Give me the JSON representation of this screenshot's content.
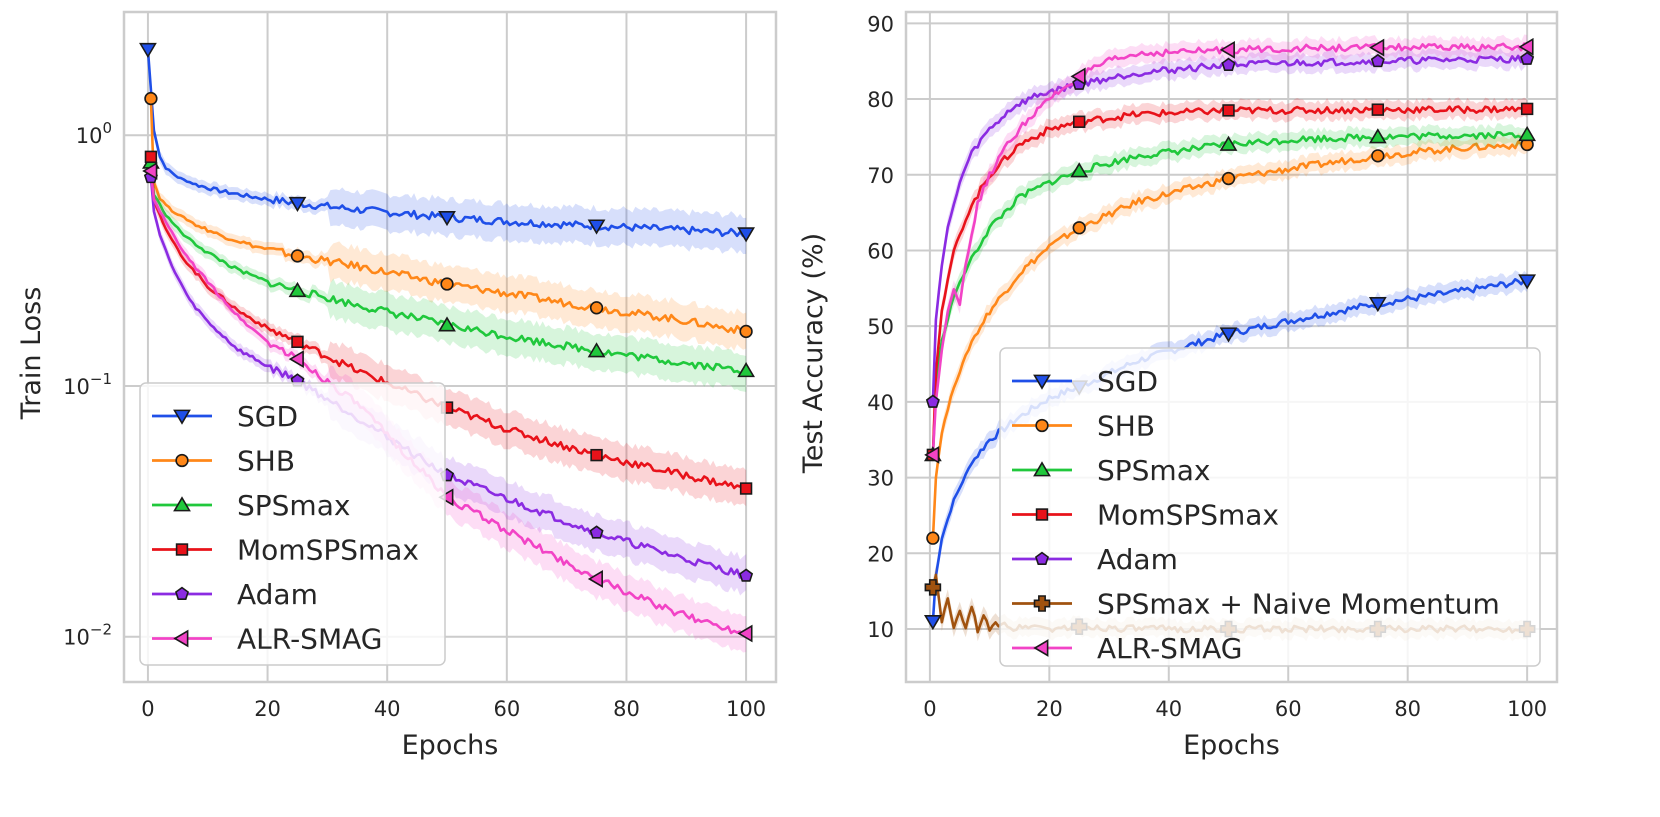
{
  "colors": {
    "SGD": "#1f4fe8",
    "SHB": "#ff8718",
    "SPSmax": "#20c83c",
    "MomSPSmax": "#e8121a",
    "Adam": "#8b2be2",
    "SPSmax + Naive Momentum": "#a0520f",
    "ALR-SMAG": "#f243c6"
  },
  "markers": {
    "SGD": "triangle-down",
    "SHB": "circle",
    "SPSmax": "triangle-up",
    "MomSPSmax": "square",
    "Adam": "pentagon",
    "SPSmax + Naive Momentum": "plus",
    "ALR-SMAG": "triangle-left"
  },
  "chart_data": [
    {
      "type": "line",
      "id": "left",
      "xlabel": "Epochs",
      "ylabel": "Train Loss",
      "yscale": "log",
      "xlim": [
        -4,
        105
      ],
      "ylim": [
        0.0066,
        3.1
      ],
      "xticks": [
        0,
        20,
        40,
        60,
        80,
        100
      ],
      "yticks": [
        {
          "value": 1,
          "base": "10",
          "exp": "0"
        },
        {
          "value": 0.1,
          "base": "10",
          "exp": "−1"
        },
        {
          "value": 0.01,
          "base": "10",
          "exp": "−2"
        }
      ],
      "grid": true,
      "legend": {
        "placement": "bottom-left",
        "entries": [
          "SGD",
          "SHB",
          "SPSmax",
          "MomSPSmax",
          "Adam",
          "ALR-SMAG"
        ]
      },
      "series": [
        {
          "name": "SGD",
          "x": [
            0,
            1,
            2,
            3,
            5,
            8,
            12,
            17,
            25,
            35,
            50,
            62,
            75,
            88,
            100
          ],
          "values": [
            2.2,
            1.05,
            0.82,
            0.74,
            0.68,
            0.635,
            0.6,
            0.57,
            0.535,
            0.505,
            0.47,
            0.45,
            0.435,
            0.42,
            0.405
          ],
          "markers_at": [
            0,
            25,
            50,
            75,
            100
          ]
        },
        {
          "name": "SHB",
          "x": [
            0.5,
            1,
            2,
            4,
            8,
            12,
            18,
            25,
            35,
            50,
            62,
            75,
            88,
            100
          ],
          "values": [
            1.4,
            0.65,
            0.56,
            0.5,
            0.44,
            0.4,
            0.36,
            0.33,
            0.3,
            0.255,
            0.23,
            0.205,
            0.185,
            0.165
          ],
          "markers_at": [
            0.5,
            25,
            50,
            75,
            100
          ]
        },
        {
          "name": "SPSmax",
          "x": [
            0.5,
            1,
            3,
            6,
            10,
            15,
            20,
            25,
            35,
            50,
            62,
            75,
            88,
            100
          ],
          "values": [
            0.78,
            0.58,
            0.48,
            0.4,
            0.34,
            0.29,
            0.26,
            0.24,
            0.21,
            0.175,
            0.155,
            0.138,
            0.125,
            0.115
          ],
          "markers_at": [
            0.5,
            25,
            50,
            75,
            100
          ]
        },
        {
          "name": "MomSPSmax",
          "x": [
            0.5,
            1,
            3,
            6,
            10,
            15,
            20,
            25,
            35,
            50,
            62,
            75,
            88,
            100
          ],
          "values": [
            0.82,
            0.55,
            0.42,
            0.32,
            0.25,
            0.2,
            0.17,
            0.15,
            0.115,
            0.082,
            0.065,
            0.053,
            0.045,
            0.039
          ],
          "markers_at": [
            0.5,
            25,
            50,
            75,
            100
          ]
        },
        {
          "name": "Adam",
          "x": [
            0.5,
            1,
            2,
            4,
            7,
            10,
            15,
            20,
            25,
            35,
            50,
            62,
            75,
            88,
            100
          ],
          "values": [
            0.68,
            0.5,
            0.4,
            0.3,
            0.22,
            0.18,
            0.14,
            0.12,
            0.105,
            0.075,
            0.044,
            0.034,
            0.026,
            0.021,
            0.0175
          ],
          "markers_at": [
            0.5,
            25,
            50,
            75,
            100
          ]
        },
        {
          "name": "ALR-SMAG",
          "x": [
            0.5,
            1,
            3,
            6,
            10,
            15,
            20,
            25,
            35,
            50,
            62,
            75,
            88,
            100
          ],
          "values": [
            0.72,
            0.55,
            0.45,
            0.34,
            0.26,
            0.19,
            0.15,
            0.128,
            0.085,
            0.036,
            0.025,
            0.017,
            0.0125,
            0.0103
          ],
          "markers_at": [
            0.5,
            25,
            50,
            75,
            100
          ]
        }
      ]
    },
    {
      "type": "line",
      "id": "right",
      "xlabel": "Epochs",
      "ylabel": "Test Accuracy  (%)",
      "yscale": "linear",
      "xlim": [
        -4,
        105
      ],
      "ylim": [
        3,
        91.5
      ],
      "xticks": [
        0,
        20,
        40,
        60,
        80,
        100
      ],
      "yticks": [
        10,
        20,
        30,
        40,
        50,
        60,
        70,
        80,
        90
      ],
      "grid": true,
      "legend": {
        "placement": "bottom-right",
        "entries": [
          "SGD",
          "SHB",
          "SPSmax",
          "MomSPSmax",
          "Adam",
          "SPSmax + Naive Momentum",
          "ALR-SMAG"
        ]
      },
      "series": [
        {
          "name": "SGD",
          "x": [
            0.5,
            1,
            2,
            4,
            7,
            10,
            15,
            20,
            25,
            35,
            50,
            62,
            75,
            88,
            100
          ],
          "values": [
            11,
            17,
            22,
            27,
            32,
            35,
            38,
            40.5,
            42,
            45.5,
            49,
            51,
            53,
            54.5,
            56
          ],
          "markers_at": [
            0.5,
            25,
            50,
            75,
            100
          ]
        },
        {
          "name": "SHB",
          "x": [
            0.5,
            1,
            2,
            4,
            7,
            10,
            15,
            20,
            25,
            35,
            50,
            62,
            75,
            88,
            100
          ],
          "values": [
            22,
            30,
            36,
            42,
            48,
            52,
            57,
            60.5,
            63,
            66.5,
            69.5,
            71,
            72.5,
            73.5,
            74
          ],
          "markers_at": [
            0.5,
            25,
            50,
            75,
            100
          ]
        },
        {
          "name": "SPSmax",
          "x": [
            0.5,
            1,
            2,
            4,
            7,
            10,
            15,
            20,
            25,
            35,
            50,
            62,
            75,
            88,
            100
          ],
          "values": [
            33,
            42,
            48,
            54,
            59,
            63,
            67,
            69,
            70.5,
            72.5,
            74,
            74.7,
            75,
            75.2,
            75.3
          ],
          "markers_at": [
            0.5,
            25,
            50,
            75,
            100
          ]
        },
        {
          "name": "MomSPSmax",
          "x": [
            0.5,
            1,
            2,
            4,
            7,
            10,
            15,
            20,
            25,
            35,
            50,
            62,
            75,
            88,
            100
          ],
          "values": [
            33,
            44,
            52,
            60,
            66,
            70,
            74,
            76,
            77,
            78,
            78.5,
            78.5,
            78.6,
            78.6,
            78.7
          ],
          "markers_at": [
            0.5,
            25,
            50,
            75,
            100
          ]
        },
        {
          "name": "Adam",
          "x": [
            0.5,
            1,
            2,
            3,
            5,
            7,
            10,
            14,
            18,
            25,
            35,
            50,
            62,
            75,
            88,
            100
          ],
          "values": [
            40,
            51,
            58,
            63,
            69,
            73,
            76,
            79,
            80.5,
            82,
            83.5,
            84.5,
            84.8,
            85,
            85.2,
            85.3
          ],
          "markers_at": [
            0.5,
            25,
            50,
            75,
            100
          ]
        },
        {
          "name": "SPSmax + Naive Momentum",
          "x": [
            0.5,
            1,
            2,
            3,
            4,
            5,
            6,
            7,
            8,
            9,
            10,
            12,
            14,
            17,
            20,
            25,
            35,
            50,
            62,
            75,
            88,
            100
          ],
          "values": [
            15.5,
            17,
            11,
            14,
            10,
            12.5,
            10,
            13,
            10,
            11.5,
            10,
            11,
            10,
            10.5,
            10,
            10.3,
            10,
            10,
            10,
            10,
            10,
            10
          ],
          "markers_at": [
            0.5,
            25,
            50,
            75,
            100
          ]
        },
        {
          "name": "ALR-SMAG",
          "x": [
            0.5,
            1,
            2,
            3,
            4,
            5,
            6,
            8,
            10,
            13,
            16,
            20,
            25,
            30,
            35,
            50,
            62,
            75,
            88,
            100
          ],
          "values": [
            33,
            40,
            47,
            52,
            55,
            53,
            58,
            66,
            70,
            74,
            77,
            80,
            83,
            85,
            86,
            86.5,
            86.7,
            86.8,
            86.8,
            86.9
          ],
          "markers_at": [
            0.5,
            25,
            50,
            75,
            100
          ]
        }
      ]
    }
  ]
}
